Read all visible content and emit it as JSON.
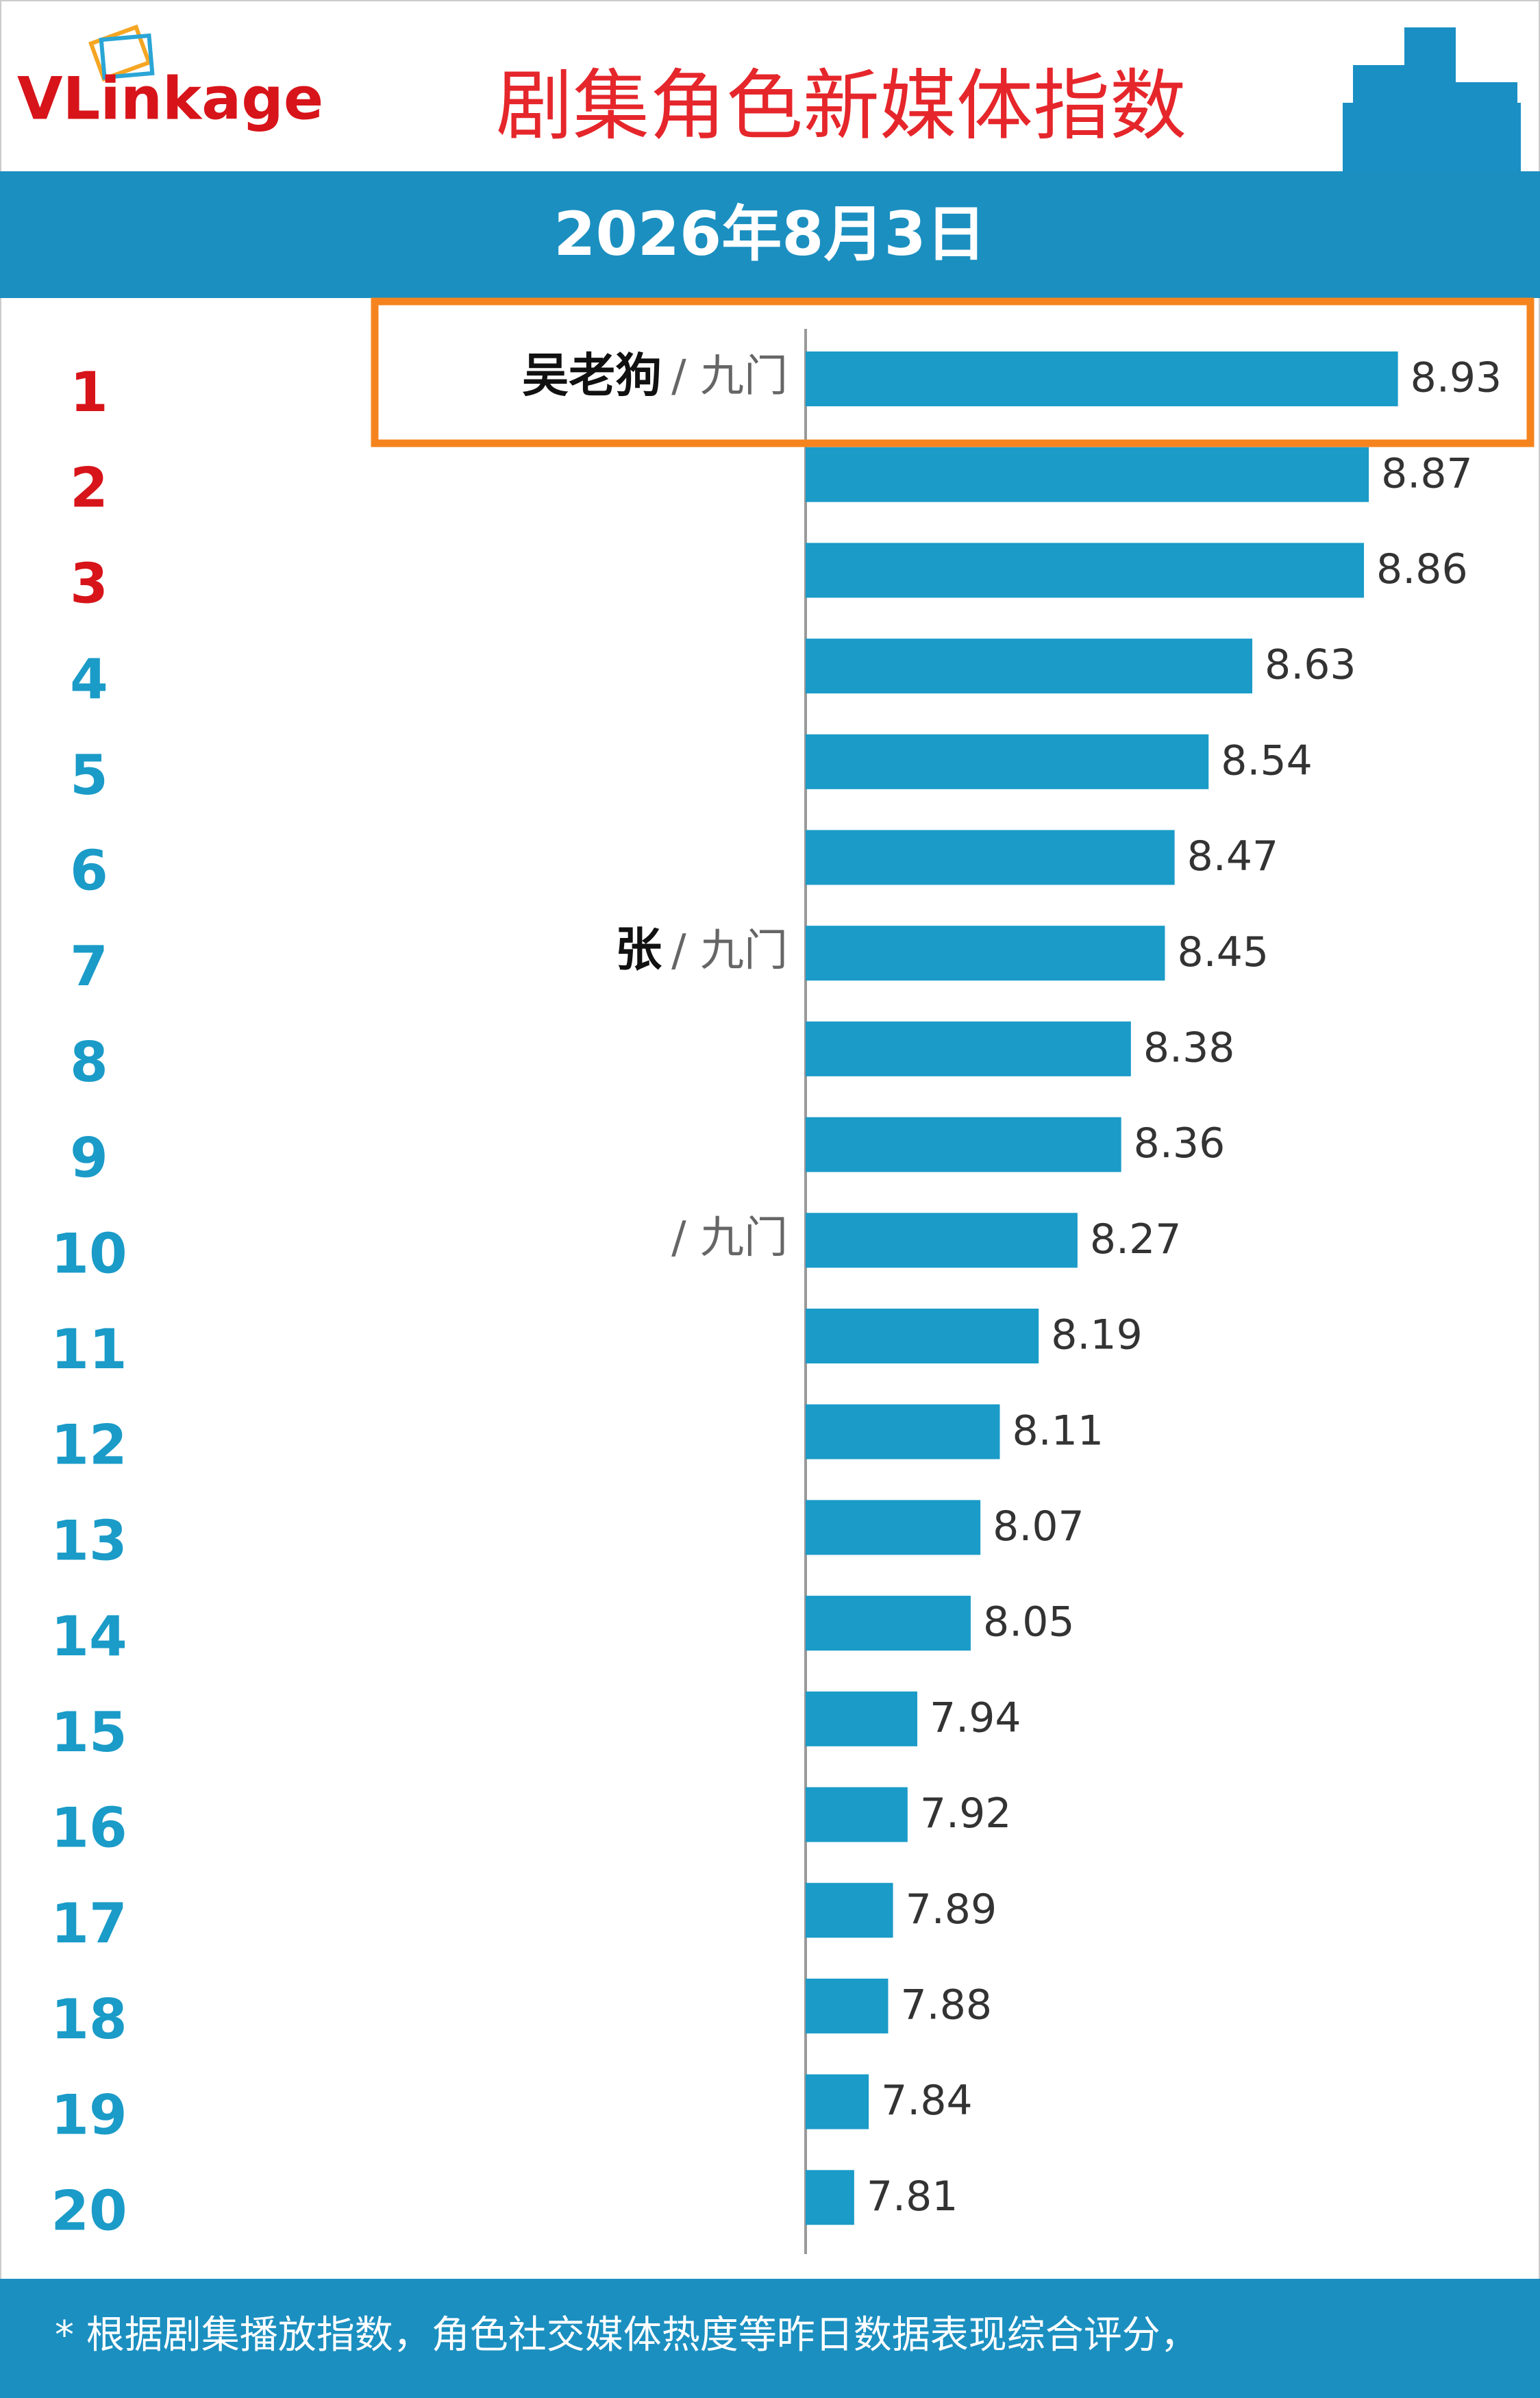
{
  "logo": "VLinkage",
  "chart_data": {
    "type": "bar",
    "orientation": "horizontal",
    "title": "剧集角色新媒体指数",
    "subtitle": "2026年8月3日",
    "ranks": [
      1,
      2,
      3,
      4,
      5,
      6,
      7,
      8,
      9,
      10,
      11,
      12,
      13,
      14,
      15,
      16,
      17,
      18,
      19,
      20
    ],
    "rank_colors": [
      "#d7141a",
      "#d7141a",
      "#d7141a",
      "#1a9bc8",
      "#1a9bc8",
      "#1a9bc8",
      "#1a9bc8",
      "#1a9bc8",
      "#1a9bc8",
      "#1a9bc8",
      "#1a9bc8",
      "#1a9bc8",
      "#1a9bc8",
      "#1a9bc8",
      "#1a9bc8",
      "#1a9bc8",
      "#1a9bc8",
      "#1a9bc8",
      "#1a9bc8",
      "#1a9bc8"
    ],
    "categories": [
      "吴老狗",
      null,
      null,
      null,
      null,
      null,
      "张",
      null,
      null,
      null,
      null,
      null,
      null,
      null,
      null,
      null,
      null,
      null,
      null,
      null
    ],
    "category_tags": [
      "/ 九门",
      null,
      null,
      null,
      null,
      null,
      "/ 九门",
      null,
      null,
      "/ 九门",
      null,
      null,
      null,
      null,
      null,
      null,
      null,
      null,
      null,
      null
    ],
    "values": [
      8.93,
      8.87,
      8.86,
      8.63,
      8.54,
      8.47,
      8.45,
      8.38,
      8.36,
      8.27,
      8.19,
      8.11,
      8.07,
      8.05,
      7.94,
      7.92,
      7.89,
      7.88,
      7.84,
      7.81
    ],
    "color": "#1a9bc8",
    "xlim": [
      7.71,
      9.2
    ],
    "highlight_color": "#f5841f",
    "note": "* 根据剧集播放指数，角色社交媒体热度等昨日数据表现综合评分，"
  }
}
